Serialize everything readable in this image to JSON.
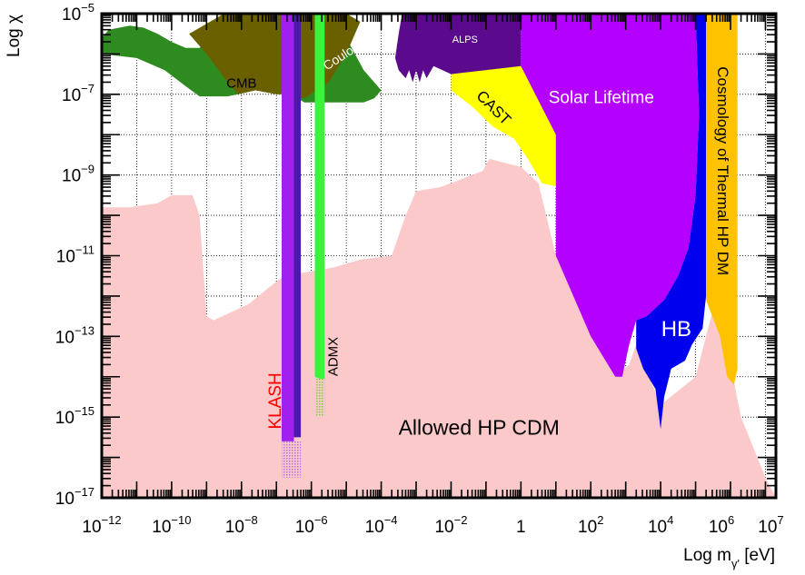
{
  "chart_data": {
    "type": "area",
    "title": "",
    "xlabel": "Log m",
    "xlabel_sub": "γ'",
    "xlabel_unit": " [eV]",
    "ylabel": "Log χ",
    "x_scale": "log",
    "y_scale": "log",
    "xlim_exp": [
      -12,
      7.3
    ],
    "ylim_exp": [
      -17,
      -5
    ],
    "x_ticks": [
      {
        "exp": -12,
        "label": "10",
        "sup": "−12"
      },
      {
        "exp": -10,
        "label": "10",
        "sup": "−10"
      },
      {
        "exp": -8,
        "label": "10",
        "sup": "−8"
      },
      {
        "exp": -6,
        "label": "10",
        "sup": "−6"
      },
      {
        "exp": -4,
        "label": "10",
        "sup": "−4"
      },
      {
        "exp": -2,
        "label": "10",
        "sup": "−2"
      },
      {
        "exp": 0,
        "label": "1",
        "sup": ""
      },
      {
        "exp": 2,
        "label": "10",
        "sup": "2"
      },
      {
        "exp": 4,
        "label": "10",
        "sup": "4"
      },
      {
        "exp": 6,
        "label": "10",
        "sup": "6"
      },
      {
        "exp": 7,
        "label": "10",
        "sup": "7"
      }
    ],
    "y_ticks": [
      {
        "exp": -5,
        "label": "10",
        "sup": "−5"
      },
      {
        "exp": -7,
        "label": "10",
        "sup": "−7"
      },
      {
        "exp": -9,
        "label": "10",
        "sup": "−9"
      },
      {
        "exp": -11,
        "label": "10",
        "sup": "−11"
      },
      {
        "exp": -13,
        "label": "10",
        "sup": "−13"
      },
      {
        "exp": -15,
        "label": "10",
        "sup": "−15"
      },
      {
        "exp": -17,
        "label": "10",
        "sup": "−17"
      }
    ],
    "grid": true,
    "regions": [
      {
        "name": "Allowed HP CDM",
        "color": "#fbc9c9",
        "points": [
          [
            -12,
            -9.8
          ],
          [
            -11.2,
            -9.8
          ],
          [
            -10.4,
            -9.7
          ],
          [
            -10.0,
            -9.5
          ],
          [
            -9.4,
            -9.5
          ],
          [
            -9.2,
            -10
          ],
          [
            -9.0,
            -12.5
          ],
          [
            -8.8,
            -12.6
          ],
          [
            -7.8,
            -12.2
          ],
          [
            -6.8,
            -11.5
          ],
          [
            -5.4,
            -11.3
          ],
          [
            -4.6,
            -11.1
          ],
          [
            -3.7,
            -11.0
          ],
          [
            -3.3,
            -10.0
          ],
          [
            -3.0,
            -9.4
          ],
          [
            -2.3,
            -9.3
          ],
          [
            -1.1,
            -8.9
          ],
          [
            -0.9,
            -8.6
          ],
          [
            0,
            -8.8
          ],
          [
            0.5,
            -9.2
          ],
          [
            1.0,
            -11.0
          ],
          [
            2.0,
            -13.0
          ],
          [
            2.7,
            -14.0
          ],
          [
            3.1,
            -13.7
          ],
          [
            3.3,
            -13.2
          ],
          [
            4.0,
            -14.7
          ],
          [
            5.0,
            -14.0
          ],
          [
            5.6,
            -12.0
          ],
          [
            6.3,
            -15.0
          ],
          [
            7.0,
            -16.5
          ],
          [
            7.3,
            -17
          ],
          [
            -12,
            -17
          ]
        ]
      },
      {
        "name": "CMB",
        "color": "#2e8b1f",
        "points": [
          [
            -12,
            -5.6
          ],
          [
            -11.8,
            -5.4
          ],
          [
            -11.5,
            -5.35
          ],
          [
            -11.2,
            -5.3
          ],
          [
            -10.8,
            -5.35
          ],
          [
            -10.4,
            -5.5
          ],
          [
            -10.0,
            -5.7
          ],
          [
            -9.6,
            -5.85
          ],
          [
            -9.2,
            -5.85
          ],
          [
            -9.0,
            -5.7
          ],
          [
            -8.6,
            -5.4
          ],
          [
            -8.0,
            -5.2
          ],
          [
            -7.5,
            -5
          ],
          [
            -5.7,
            -5
          ],
          [
            -5.3,
            -5.3
          ],
          [
            -5.0,
            -5.6
          ],
          [
            -4.5,
            -6.4
          ],
          [
            -4.0,
            -6.9
          ],
          [
            -4.2,
            -7.1
          ],
          [
            -4.5,
            -7.2
          ],
          [
            -6.2,
            -7.2
          ],
          [
            -6.6,
            -7.0
          ],
          [
            -7.0,
            -7.0
          ],
          [
            -7.6,
            -6.9
          ],
          [
            -8.1,
            -7.0
          ],
          [
            -8.4,
            -7.05
          ],
          [
            -9.2,
            -7.05
          ],
          [
            -9.6,
            -6.8
          ],
          [
            -10.2,
            -6.4
          ],
          [
            -11.0,
            -6.1
          ],
          [
            -12,
            -6.0
          ]
        ]
      },
      {
        "name": "Coulomb",
        "color": "#6b6000",
        "points": [
          [
            -8.5,
            -5
          ],
          [
            -5.0,
            -5
          ],
          [
            -4.6,
            -5.2
          ],
          [
            -5.0,
            -6.0
          ],
          [
            -5.5,
            -6.7
          ],
          [
            -6.2,
            -7.1
          ],
          [
            -6.6,
            -7.0
          ],
          [
            -7.0,
            -7.0
          ],
          [
            -7.6,
            -6.9
          ],
          [
            -8.1,
            -7.0
          ],
          [
            -8.4,
            -6.7
          ],
          [
            -9.0,
            -6.0
          ],
          [
            -9.5,
            -5.5
          ]
        ]
      },
      {
        "name": "ALPS",
        "color": "#5b0a8e",
        "points": [
          [
            -3.4,
            -5
          ],
          [
            0.0,
            -5
          ],
          [
            0.0,
            -6.3
          ],
          [
            -1.2,
            -6.5
          ],
          [
            -2.0,
            -6.5
          ],
          [
            -2.5,
            -6.3
          ],
          [
            -2.7,
            -6.6
          ],
          [
            -2.8,
            -6.4
          ],
          [
            -2.9,
            -6.7
          ],
          [
            -3.0,
            -6.4
          ],
          [
            -3.1,
            -6.7
          ],
          [
            -3.2,
            -6.4
          ],
          [
            -3.3,
            -6.6
          ],
          [
            -3.5,
            -6.4
          ],
          [
            -3.6,
            -6.1
          ],
          [
            -3.5,
            -5.5
          ]
        ]
      },
      {
        "name": "CAST",
        "color": "#ffff00",
        "points": [
          [
            -2.0,
            -6.5
          ],
          [
            0.0,
            -6.3
          ],
          [
            1.0,
            -8.0
          ],
          [
            1.1,
            -9.3
          ],
          [
            0.6,
            -9.2
          ],
          [
            0.2,
            -8.6
          ],
          [
            -0.2,
            -8.1
          ],
          [
            -0.8,
            -7.8
          ],
          [
            -1.4,
            -7.3
          ],
          [
            -2.0,
            -6.9
          ]
        ]
      },
      {
        "name": "Solar Lifetime",
        "color": "#b400ff",
        "points": [
          [
            0.0,
            -5
          ],
          [
            5.0,
            -5
          ],
          [
            5.1,
            -7.5
          ],
          [
            5.0,
            -9.5
          ],
          [
            4.8,
            -10.8
          ],
          [
            4.5,
            -11.5
          ],
          [
            4.1,
            -12.1
          ],
          [
            3.6,
            -12.5
          ],
          [
            3.3,
            -12.6
          ],
          [
            3.1,
            -13.2
          ],
          [
            2.9,
            -14.0
          ],
          [
            2.7,
            -14.0
          ],
          [
            2.0,
            -13.0
          ],
          [
            1.0,
            -11.0
          ],
          [
            1.0,
            -8.0
          ],
          [
            0.0,
            -6.3
          ]
        ]
      },
      {
        "name": "HB",
        "color": "#0000ee",
        "points": [
          [
            5.0,
            -5
          ],
          [
            5.3,
            -5
          ],
          [
            5.3,
            -12.0
          ],
          [
            5.2,
            -12.8
          ],
          [
            4.9,
            -13.2
          ],
          [
            4.7,
            -13.6
          ],
          [
            4.3,
            -13.8
          ],
          [
            4.1,
            -14.5
          ],
          [
            4.0,
            -15.3
          ],
          [
            3.85,
            -14.3
          ],
          [
            3.5,
            -13.8
          ],
          [
            3.3,
            -13.3
          ],
          [
            3.3,
            -12.6
          ],
          [
            3.6,
            -12.5
          ],
          [
            4.1,
            -12.1
          ],
          [
            4.5,
            -11.5
          ],
          [
            4.8,
            -10.8
          ],
          [
            5.0,
            -9.5
          ],
          [
            5.1,
            -7.5
          ]
        ]
      },
      {
        "name": "Cosmology of Thermal HP DM",
        "color": "#ffc200",
        "points": [
          [
            5.3,
            -5
          ],
          [
            6.2,
            -5
          ],
          [
            6.2,
            -13.8
          ],
          [
            6.1,
            -14.2
          ],
          [
            5.9,
            -14.0
          ],
          [
            5.7,
            -13.0
          ],
          [
            5.3,
            -12.1
          ]
        ]
      },
      {
        "name": "KLASH",
        "color": "#a020f0",
        "points": [
          [
            -6.85,
            -5
          ],
          [
            -6.5,
            -5
          ],
          [
            -6.5,
            -15.7
          ],
          [
            -6.85,
            -15.7
          ]
        ]
      },
      {
        "name": "KLASH-band",
        "color": "#4b1aa8",
        "points": [
          [
            -6.5,
            -5
          ],
          [
            -6.3,
            -5
          ],
          [
            -6.3,
            -15.5
          ],
          [
            -6.5,
            -15.5
          ]
        ]
      },
      {
        "name": "ADMX",
        "color": "#3cf23c",
        "points": [
          [
            -5.9,
            -5
          ],
          [
            -5.62,
            -5
          ],
          [
            -5.62,
            -14.1
          ],
          [
            -5.9,
            -14.0
          ]
        ]
      }
    ],
    "hatched": [
      {
        "name": "KLASH-projection",
        "color": "#c080f0",
        "x0": -6.85,
        "x1": -6.3,
        "y0": -16.5,
        "y1": -15.6
      },
      {
        "name": "ADMX-projection",
        "color": "#8ad84a",
        "x0": -5.9,
        "x1": -5.62,
        "y0": -15.0,
        "y1": -14.05
      }
    ],
    "annotations": [
      {
        "text": "CMB",
        "x": -8.0,
        "y": -6.75,
        "color": "#000000",
        "size": 15,
        "rotate": 0
      },
      {
        "text": "Coulomb",
        "x": -5.0,
        "y": -6.0,
        "color": "#ffffff",
        "size": 14,
        "rotate": -33
      },
      {
        "text": "ALPS",
        "x": -1.6,
        "y": -5.65,
        "color": "#ffffff",
        "size": 11,
        "rotate": 0
      },
      {
        "text": "CAST",
        "x": -0.8,
        "y": -7.35,
        "color": "#000000",
        "size": 17,
        "rotate": 45
      },
      {
        "text": "Solar Lifetime",
        "x": 2.3,
        "y": -7.1,
        "color": "#ffffff",
        "size": 19,
        "rotate": 0
      },
      {
        "text": "HB",
        "x": 4.45,
        "y": -12.85,
        "color": "#ffffff",
        "size": 24,
        "rotate": 0
      },
      {
        "text": "Cosmology of Thermal HP DM",
        "x": 5.75,
        "y": -8.9,
        "color": "#000000",
        "size": 17,
        "rotate": 90
      },
      {
        "text": "KLASH",
        "x": -7.0,
        "y": -14.6,
        "color": "#ff0000",
        "size": 19,
        "rotate": -90
      },
      {
        "text": "ADMX",
        "x": -5.35,
        "y": -13.5,
        "color": "#000000",
        "size": 15,
        "rotate": -90
      },
      {
        "text": "Allowed HP CDM",
        "x": -1.2,
        "y": -15.3,
        "color": "#000000",
        "size": 23,
        "rotate": 0
      }
    ]
  }
}
